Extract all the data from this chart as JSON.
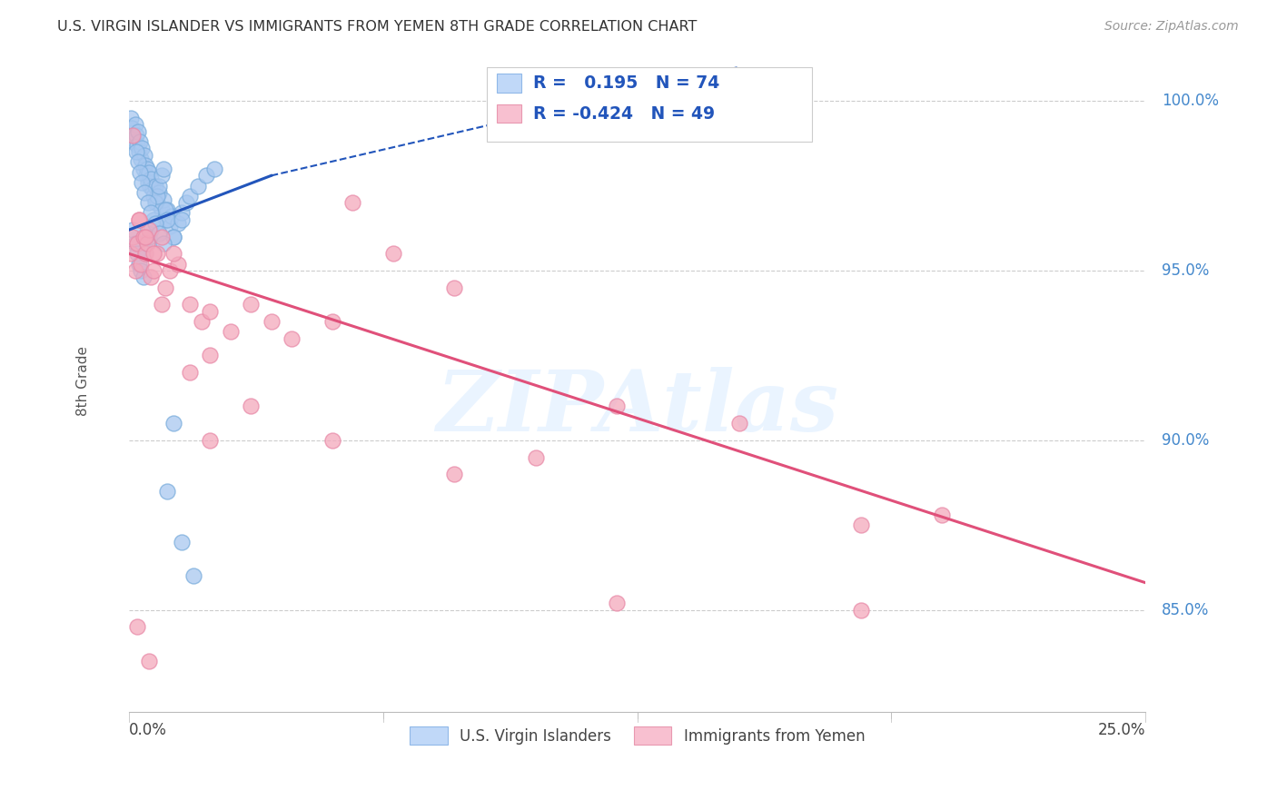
{
  "title": "U.S. VIRGIN ISLANDER VS IMMIGRANTS FROM YEMEN 8TH GRADE CORRELATION CHART",
  "source": "Source: ZipAtlas.com",
  "ylabel": "8th Grade",
  "xmin": 0.0,
  "xmax": 25.0,
  "ymin": 82.0,
  "ymax": 101.5,
  "R_blue": 0.195,
  "N_blue": 74,
  "R_pink": -0.424,
  "N_pink": 49,
  "legend_label_blue": "U.S. Virgin Islanders",
  "legend_label_pink": "Immigrants from Yemen",
  "blue_color": "#a8c8f0",
  "pink_color": "#f4a8bc",
  "blue_edge_color": "#7aaddc",
  "pink_edge_color": "#e88aa8",
  "blue_line_color": "#2255bb",
  "pink_line_color": "#e0507a",
  "watermark": "ZIPAtlas",
  "grid_color": "#cccccc",
  "ytick_vals": [
    85.0,
    90.0,
    95.0,
    100.0
  ],
  "blue_scatter_x": [
    0.05,
    0.08,
    0.1,
    0.12,
    0.15,
    0.18,
    0.2,
    0.22,
    0.25,
    0.28,
    0.3,
    0.32,
    0.35,
    0.38,
    0.4,
    0.42,
    0.45,
    0.48,
    0.5,
    0.52,
    0.55,
    0.58,
    0.6,
    0.65,
    0.7,
    0.75,
    0.8,
    0.85,
    0.9,
    0.95,
    1.0,
    1.05,
    1.1,
    1.2,
    1.3,
    1.4,
    1.5,
    1.7,
    1.9,
    2.1,
    0.1,
    0.15,
    0.2,
    0.25,
    0.3,
    0.35,
    0.4,
    0.45,
    0.5,
    0.55,
    0.6,
    0.65,
    0.7,
    0.75,
    0.8,
    0.85,
    0.9,
    0.95,
    1.1,
    1.3,
    0.18,
    0.22,
    0.28,
    0.32,
    0.38,
    0.48,
    0.55,
    0.65,
    0.75,
    0.85,
    0.95,
    1.1,
    1.3,
    1.6
  ],
  "blue_scatter_y": [
    99.5,
    99.2,
    99.0,
    98.8,
    99.3,
    99.0,
    98.7,
    99.1,
    98.5,
    98.8,
    98.3,
    98.6,
    98.0,
    98.4,
    98.1,
    97.8,
    98.0,
    97.6,
    97.9,
    97.5,
    97.7,
    97.4,
    97.2,
    97.5,
    97.0,
    97.3,
    96.8,
    97.1,
    96.5,
    96.8,
    96.3,
    96.6,
    96.0,
    96.4,
    96.7,
    97.0,
    97.2,
    97.5,
    97.8,
    98.0,
    96.2,
    95.8,
    95.5,
    95.2,
    95.0,
    94.8,
    95.5,
    95.8,
    96.0,
    96.2,
    96.5,
    97.0,
    97.2,
    97.5,
    97.8,
    98.0,
    96.8,
    96.5,
    96.0,
    96.5,
    98.5,
    98.2,
    97.9,
    97.6,
    97.3,
    97.0,
    96.7,
    96.4,
    96.1,
    95.8,
    88.5,
    90.5,
    87.0,
    86.0
  ],
  "pink_scatter_x": [
    0.05,
    0.1,
    0.15,
    0.2,
    0.25,
    0.3,
    0.35,
    0.4,
    0.45,
    0.5,
    0.55,
    0.6,
    0.7,
    0.8,
    0.9,
    1.0,
    1.2,
    1.5,
    1.8,
    2.0,
    2.5,
    3.0,
    3.5,
    4.0,
    5.0,
    5.5,
    6.5,
    8.0,
    10.0,
    12.0,
    15.0,
    18.0,
    20.0,
    0.1,
    0.25,
    0.4,
    0.6,
    0.8,
    1.1,
    1.5,
    2.0,
    3.0,
    5.0,
    8.0,
    12.0,
    18.0,
    0.2,
    0.5,
    2.0
  ],
  "pink_scatter_y": [
    95.5,
    96.0,
    95.0,
    95.8,
    96.5,
    95.2,
    96.0,
    95.5,
    95.8,
    96.2,
    94.8,
    95.0,
    95.5,
    94.0,
    94.5,
    95.0,
    95.2,
    94.0,
    93.5,
    93.8,
    93.2,
    94.0,
    93.5,
    93.0,
    93.5,
    97.0,
    95.5,
    94.5,
    89.5,
    91.0,
    90.5,
    87.5,
    87.8,
    99.0,
    96.5,
    96.0,
    95.5,
    96.0,
    95.5,
    92.0,
    92.5,
    91.0,
    90.0,
    89.0,
    85.2,
    85.0,
    84.5,
    83.5,
    90.0
  ],
  "blue_line_x0": 0.0,
  "blue_line_y0": 96.2,
  "blue_line_x1": 3.5,
  "blue_line_y1": 97.8,
  "blue_line_dash_x1": 15.0,
  "blue_line_dash_y1": 101.0,
  "pink_line_x0": 0.0,
  "pink_line_y0": 95.5,
  "pink_line_x1": 25.0,
  "pink_line_y1": 85.8
}
